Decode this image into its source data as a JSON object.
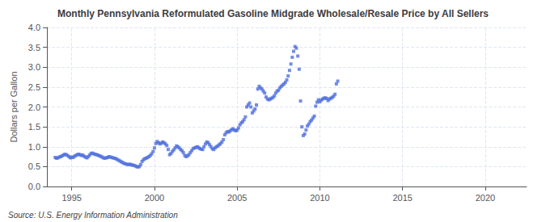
{
  "chart_data": {
    "type": "scatter",
    "title": "Monthly Pennsylvania Reformulated Gasoline Midgrade Wholesale/Resale Price by All Sellers",
    "ylabel": "Dollars per Gallon",
    "annotations": [
      "Source: U.S. Energy Information Administration"
    ],
    "marker": "square",
    "grid": true,
    "xlim": [
      1993.5,
      2022.5
    ],
    "ylim": [
      0.0,
      4.0
    ],
    "xticks": [
      1995,
      2000,
      2005,
      2010,
      2015,
      2020
    ],
    "yticks": [
      {
        "value": 0.0,
        "label": "0.0"
      },
      0.5,
      {
        "value": 1.0,
        "label": "1.0"
      },
      1.5,
      {
        "value": 2.0,
        "label": "2.0"
      },
      2.5,
      {
        "value": 3.0,
        "label": "3.0"
      },
      3.5,
      {
        "value": 4.0,
        "label": "4.0"
      }
    ],
    "x": [
      1994.0,
      1994.083,
      1994.167,
      1994.25,
      1994.333,
      1994.417,
      1994.5,
      1994.583,
      1994.667,
      1994.75,
      1994.833,
      1994.917,
      1995.0,
      1995.083,
      1995.167,
      1995.25,
      1995.333,
      1995.417,
      1995.5,
      1995.583,
      1995.667,
      1995.75,
      1995.833,
      1995.917,
      1996.0,
      1996.083,
      1996.167,
      1996.25,
      1996.333,
      1996.417,
      1996.5,
      1996.583,
      1996.667,
      1996.75,
      1996.833,
      1996.917,
      1997.0,
      1997.083,
      1997.167,
      1997.25,
      1997.333,
      1997.417,
      1997.5,
      1997.583,
      1997.667,
      1997.75,
      1997.833,
      1997.917,
      1998.0,
      1998.083,
      1998.167,
      1998.25,
      1998.333,
      1998.417,
      1998.5,
      1998.583,
      1998.667,
      1998.75,
      1998.833,
      1998.917,
      1999.0,
      1999.083,
      1999.167,
      1999.25,
      1999.333,
      1999.417,
      1999.5,
      1999.583,
      1999.667,
      1999.75,
      1999.833,
      1999.917,
      2000.0,
      2000.083,
      2000.167,
      2000.25,
      2000.333,
      2000.417,
      2000.5,
      2000.583,
      2000.667,
      2000.75,
      2000.833,
      2000.917,
      2001.0,
      2001.083,
      2001.167,
      2001.25,
      2001.333,
      2001.417,
      2001.5,
      2001.583,
      2001.667,
      2001.75,
      2001.833,
      2001.917,
      2002.0,
      2002.083,
      2002.167,
      2002.25,
      2002.333,
      2002.417,
      2002.5,
      2002.583,
      2002.667,
      2002.75,
      2002.833,
      2002.917,
      2003.0,
      2003.083,
      2003.167,
      2003.25,
      2003.333,
      2003.417,
      2003.5,
      2003.583,
      2003.667,
      2003.75,
      2003.833,
      2003.917,
      2004.0,
      2004.083,
      2004.167,
      2004.25,
      2004.333,
      2004.417,
      2004.5,
      2004.583,
      2004.667,
      2004.75,
      2004.833,
      2004.917,
      2005.0,
      2005.083,
      2005.167,
      2005.25,
      2005.333,
      2005.417,
      2005.5,
      2005.583,
      2005.667,
      2005.75,
      2005.833,
      2005.917,
      2006.0,
      2006.083,
      2006.167,
      2006.25,
      2006.333,
      2006.417,
      2006.5,
      2006.583,
      2006.667,
      2006.75,
      2006.833,
      2006.917,
      2007.0,
      2007.083,
      2007.167,
      2007.25,
      2007.333,
      2007.417,
      2007.5,
      2007.583,
      2007.667,
      2007.75,
      2007.833,
      2007.917,
      2008.0,
      2008.083,
      2008.167,
      2008.25,
      2008.333,
      2008.417,
      2008.5,
      2008.583,
      2008.667,
      2008.75,
      2008.833,
      2008.917,
      2009.0,
      2009.083,
      2009.167,
      2009.25,
      2009.333,
      2009.417,
      2009.5,
      2009.583,
      2009.667,
      2009.75,
      2009.833,
      2009.917,
      2010.0,
      2010.083,
      2010.167,
      2010.25,
      2010.333,
      2010.417,
      2010.5,
      2010.583,
      2010.667,
      2010.75,
      2010.833,
      2010.917,
      2011.0,
      2011.083
    ],
    "values": [
      0.73,
      0.71,
      0.72,
      0.74,
      0.75,
      0.77,
      0.79,
      0.81,
      0.8,
      0.78,
      0.75,
      0.72,
      0.74,
      0.73,
      0.76,
      0.78,
      0.8,
      0.81,
      0.8,
      0.78,
      0.79,
      0.76,
      0.74,
      0.72,
      0.75,
      0.79,
      0.83,
      0.84,
      0.82,
      0.81,
      0.8,
      0.79,
      0.77,
      0.76,
      0.74,
      0.72,
      0.71,
      0.72,
      0.73,
      0.75,
      0.74,
      0.73,
      0.72,
      0.71,
      0.7,
      0.68,
      0.66,
      0.64,
      0.62,
      0.6,
      0.58,
      0.57,
      0.56,
      0.55,
      0.56,
      0.55,
      0.54,
      0.53,
      0.52,
      0.5,
      0.49,
      0.5,
      0.55,
      0.63,
      0.67,
      0.7,
      0.71,
      0.73,
      0.75,
      0.78,
      0.82,
      0.88,
      0.97,
      1.08,
      1.13,
      1.1,
      1.07,
      1.09,
      1.12,
      1.1,
      1.07,
      1.03,
      0.93,
      0.8,
      0.83,
      0.88,
      0.92,
      0.97,
      1.02,
      1.0,
      0.97,
      0.93,
      0.9,
      0.85,
      0.78,
      0.75,
      0.77,
      0.8,
      0.85,
      0.9,
      0.95,
      0.97,
      0.98,
      1.0,
      0.98,
      0.95,
      0.94,
      0.93,
      1.0,
      1.07,
      1.12,
      1.1,
      1.05,
      1.0,
      0.95,
      0.93,
      0.97,
      1.0,
      1.02,
      1.05,
      1.08,
      1.12,
      1.18,
      1.3,
      1.35,
      1.38,
      1.37,
      1.4,
      1.43,
      1.45,
      1.42,
      1.4,
      1.42,
      1.47,
      1.55,
      1.6,
      1.63,
      1.68,
      1.75,
      2.0,
      2.05,
      2.1,
      2.0,
      1.85,
      1.9,
      1.95,
      2.05,
      2.45,
      2.52,
      2.48,
      2.45,
      2.4,
      2.35,
      2.25,
      2.2,
      2.18,
      2.2,
      2.22,
      2.24,
      2.28,
      2.35,
      2.4,
      2.42,
      2.48,
      2.52,
      2.55,
      2.58,
      2.62,
      2.68,
      2.78,
      2.92,
      3.08,
      3.25,
      3.4,
      3.52,
      3.48,
      3.28,
      2.95,
      2.15,
      1.5,
      1.28,
      1.32,
      1.42,
      1.52,
      1.57,
      1.63,
      1.67,
      1.72,
      1.77,
      2.02,
      2.12,
      2.18,
      2.13,
      2.17,
      2.2,
      2.22,
      2.23,
      2.21,
      2.16,
      2.2,
      2.22,
      2.24,
      2.27,
      2.32,
      2.58,
      2.65
    ]
  }
}
